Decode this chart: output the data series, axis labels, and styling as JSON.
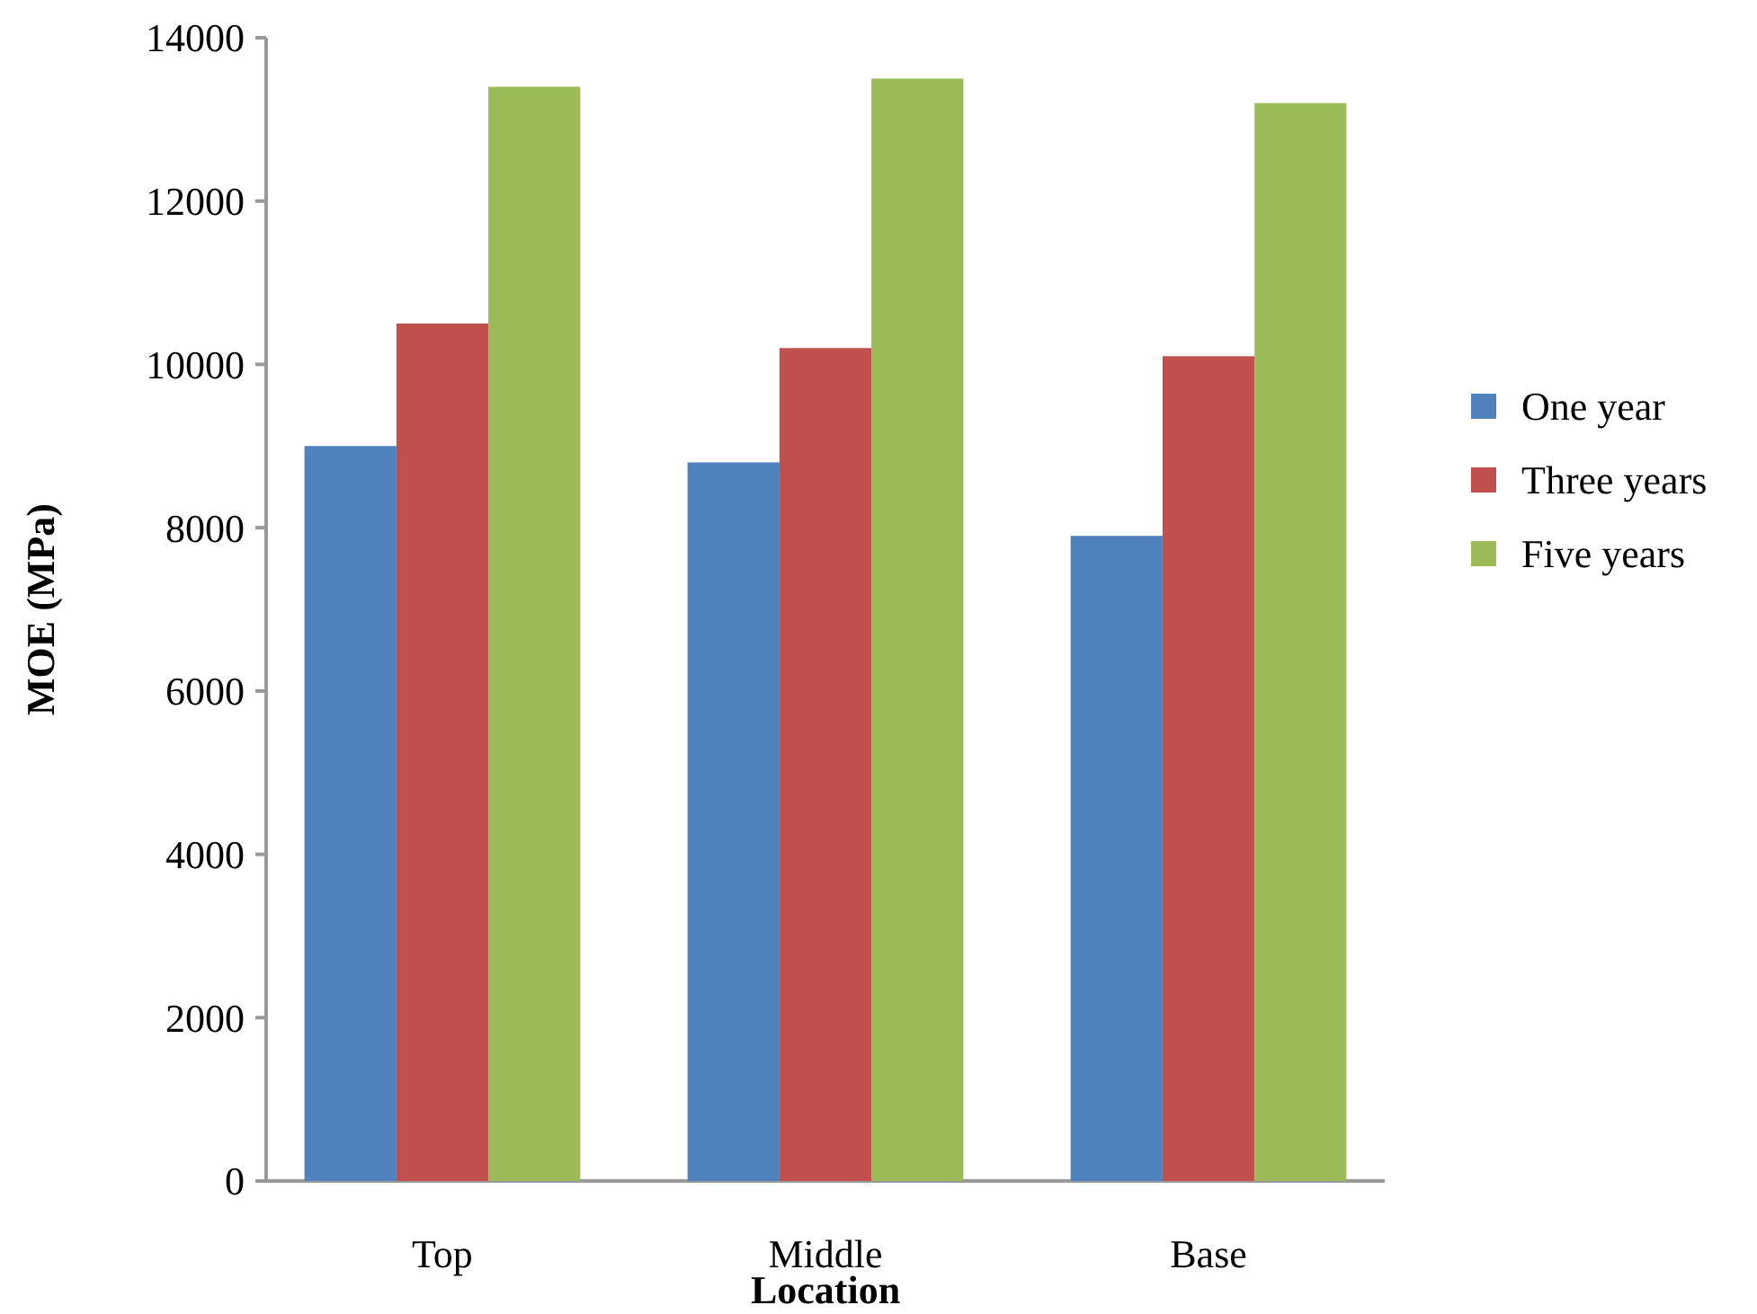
{
  "chart_data": {
    "type": "bar",
    "xlabel": "Location",
    "ylabel": "MOE (MPa)",
    "categories": [
      "Top",
      "Middle",
      "Base"
    ],
    "series": [
      {
        "name": "One year",
        "color": "#4f81bd",
        "values": [
          9000,
          8800,
          7900
        ]
      },
      {
        "name": "Three years",
        "color": "#c0504d",
        "values": [
          10500,
          10200,
          10100
        ]
      },
      {
        "name": "Five years",
        "color": "#9bbb59",
        "values": [
          13400,
          13500,
          13200
        ]
      }
    ],
    "ylim": [
      0,
      14000
    ],
    "yticks": [
      0,
      2000,
      4000,
      6000,
      8000,
      10000,
      12000,
      14000
    ],
    "legend": "right"
  }
}
